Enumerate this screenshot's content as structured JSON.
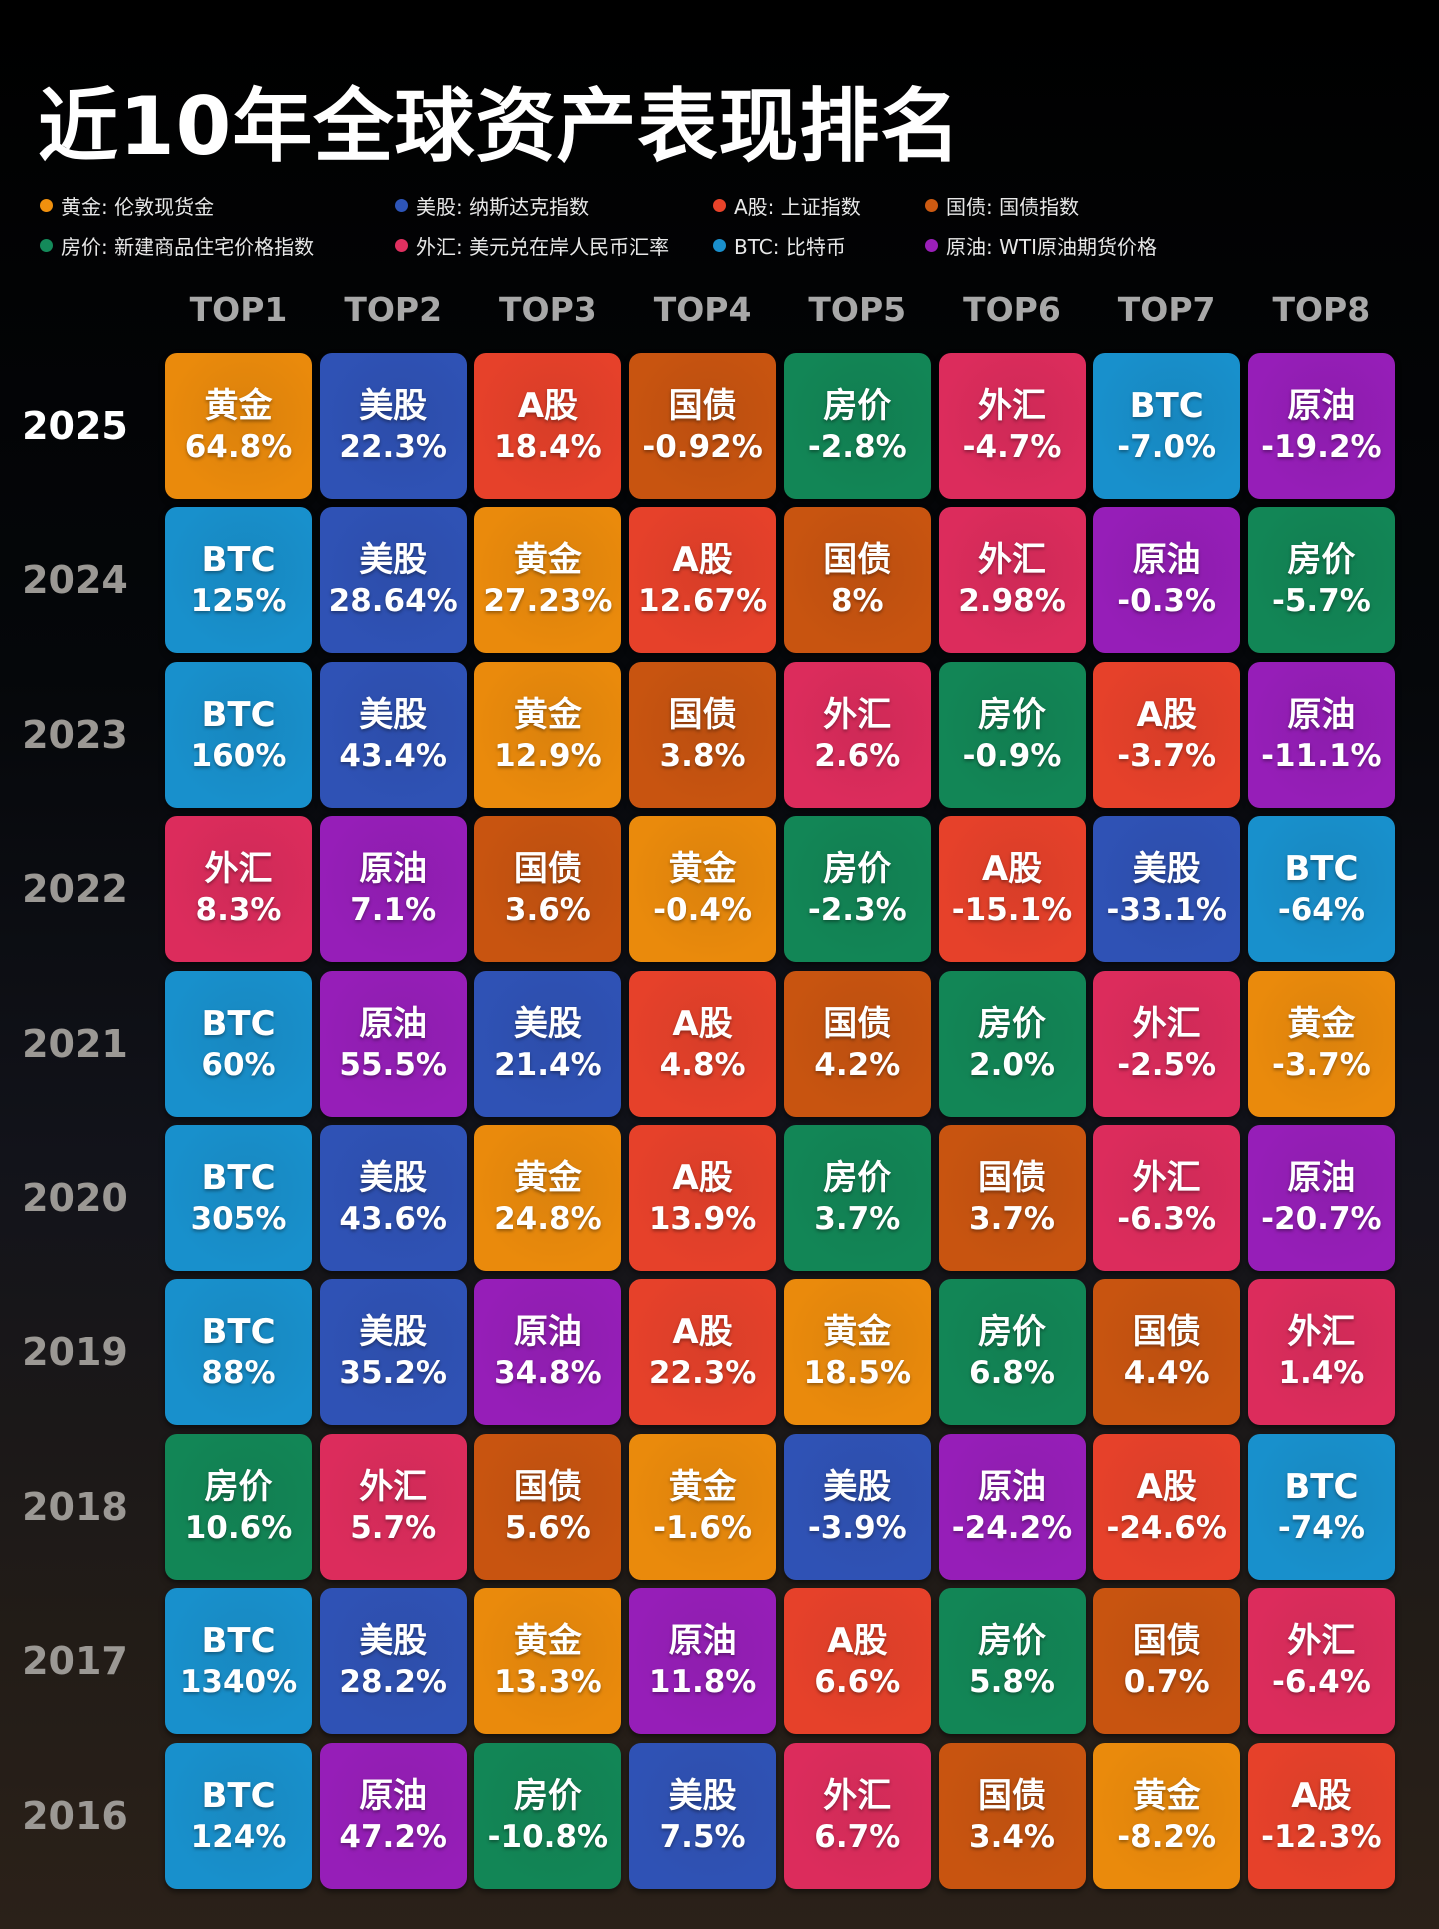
{
  "title": "近10年全球资产表现排名",
  "legend": [
    {
      "asset": "黄金",
      "label": "黄金: 伦敦现货金",
      "color": "#f0900e"
    },
    {
      "asset": "美股",
      "label": "美股: 纳斯达克指数",
      "color": "#2e55b8"
    },
    {
      "asset": "A股",
      "label": "A股: 上证指数",
      "color": "#e8432a"
    },
    {
      "asset": "国债",
      "label": "国债: 国债指数",
      "color": "#cc5a12"
    },
    {
      "asset": "房价",
      "label": "房价: 新建商品住宅价格指数",
      "color": "#148a5a"
    },
    {
      "asset": "外汇",
      "label": "外汇: 美元兑在岸人民币汇率",
      "color": "#e03060"
    },
    {
      "asset": "BTC",
      "label": "BTC: 比特币",
      "color": "#1a8fcc"
    },
    {
      "asset": "原油",
      "label": "原油: WTI原油期货价格",
      "color": "#9a1fb8"
    }
  ],
  "colors": {
    "黄金": "#ea8a0c",
    "美股": "#2f52b5",
    "A股": "#e6412a",
    "国债": "#c85410",
    "房价": "#128656",
    "外汇": "#dc2c5c",
    "BTC": "#1890cc",
    "原油": "#961eb8"
  },
  "columns": [
    "TOP1",
    "TOP2",
    "TOP3",
    "TOP4",
    "TOP5",
    "TOP6",
    "TOP7",
    "TOP8"
  ],
  "rows": [
    {
      "year": "2025",
      "cells": [
        {
          "name": "黄金",
          "value": "64.8%"
        },
        {
          "name": "美股",
          "value": "22.3%"
        },
        {
          "name": "A股",
          "value": "18.4%"
        },
        {
          "name": "国债",
          "value": "-0.92%"
        },
        {
          "name": "房价",
          "value": "-2.8%"
        },
        {
          "name": "外汇",
          "value": "-4.7%"
        },
        {
          "name": "BTC",
          "value": "-7.0%"
        },
        {
          "name": "原油",
          "value": "-19.2%"
        }
      ]
    },
    {
      "year": "2024",
      "cells": [
        {
          "name": "BTC",
          "value": "125%"
        },
        {
          "name": "美股",
          "value": "28.64%"
        },
        {
          "name": "黄金",
          "value": "27.23%"
        },
        {
          "name": "A股",
          "value": "12.67%"
        },
        {
          "name": "国债",
          "value": "8%"
        },
        {
          "name": "外汇",
          "value": "2.98%"
        },
        {
          "name": "原油",
          "value": "-0.3%"
        },
        {
          "name": "房价",
          "value": "-5.7%"
        }
      ]
    },
    {
      "year": "2023",
      "cells": [
        {
          "name": "BTC",
          "value": "160%"
        },
        {
          "name": "美股",
          "value": "43.4%"
        },
        {
          "name": "黄金",
          "value": "12.9%"
        },
        {
          "name": "国债",
          "value": "3.8%"
        },
        {
          "name": "外汇",
          "value": "2.6%"
        },
        {
          "name": "房价",
          "value": "-0.9%"
        },
        {
          "name": "A股",
          "value": "-3.7%"
        },
        {
          "name": "原油",
          "value": "-11.1%"
        }
      ]
    },
    {
      "year": "2022",
      "cells": [
        {
          "name": "外汇",
          "value": "8.3%"
        },
        {
          "name": "原油",
          "value": "7.1%"
        },
        {
          "name": "国债",
          "value": "3.6%"
        },
        {
          "name": "黄金",
          "value": "-0.4%"
        },
        {
          "name": "房价",
          "value": "-2.3%"
        },
        {
          "name": "A股",
          "value": "-15.1%"
        },
        {
          "name": "美股",
          "value": "-33.1%"
        },
        {
          "name": "BTC",
          "value": "-64%"
        }
      ]
    },
    {
      "year": "2021",
      "cells": [
        {
          "name": "BTC",
          "value": "60%"
        },
        {
          "name": "原油",
          "value": "55.5%"
        },
        {
          "name": "美股",
          "value": "21.4%"
        },
        {
          "name": "A股",
          "value": "4.8%"
        },
        {
          "name": "国债",
          "value": "4.2%"
        },
        {
          "name": "房价",
          "value": "2.0%"
        },
        {
          "name": "外汇",
          "value": "-2.5%"
        },
        {
          "name": "黄金",
          "value": "-3.7%"
        }
      ]
    },
    {
      "year": "2020",
      "cells": [
        {
          "name": "BTC",
          "value": "305%"
        },
        {
          "name": "美股",
          "value": "43.6%"
        },
        {
          "name": "黄金",
          "value": "24.8%"
        },
        {
          "name": "A股",
          "value": "13.9%"
        },
        {
          "name": "房价",
          "value": "3.7%"
        },
        {
          "name": "国债",
          "value": "3.7%"
        },
        {
          "name": "外汇",
          "value": "-6.3%"
        },
        {
          "name": "原油",
          "value": "-20.7%"
        }
      ]
    },
    {
      "year": "2019",
      "cells": [
        {
          "name": "BTC",
          "value": "88%"
        },
        {
          "name": "美股",
          "value": "35.2%"
        },
        {
          "name": "原油",
          "value": "34.8%"
        },
        {
          "name": "A股",
          "value": "22.3%"
        },
        {
          "name": "黄金",
          "value": "18.5%"
        },
        {
          "name": "房价",
          "value": "6.8%"
        },
        {
          "name": "国债",
          "value": "4.4%"
        },
        {
          "name": "外汇",
          "value": "1.4%"
        }
      ]
    },
    {
      "year": "2018",
      "cells": [
        {
          "name": "房价",
          "value": "10.6%"
        },
        {
          "name": "外汇",
          "value": "5.7%"
        },
        {
          "name": "国债",
          "value": "5.6%"
        },
        {
          "name": "黄金",
          "value": "-1.6%"
        },
        {
          "name": "美股",
          "value": "-3.9%"
        },
        {
          "name": "原油",
          "value": "-24.2%"
        },
        {
          "name": "A股",
          "value": "-24.6%"
        },
        {
          "name": "BTC",
          "value": "-74%"
        }
      ]
    },
    {
      "year": "2017",
      "cells": [
        {
          "name": "BTC",
          "value": "1340%"
        },
        {
          "name": "美股",
          "value": "28.2%"
        },
        {
          "name": "黄金",
          "value": "13.3%"
        },
        {
          "name": "原油",
          "value": "11.8%"
        },
        {
          "name": "A股",
          "value": "6.6%"
        },
        {
          "name": "房价",
          "value": "5.8%"
        },
        {
          "name": "国债",
          "value": "0.7%"
        },
        {
          "name": "外汇",
          "value": "-6.4%"
        }
      ]
    },
    {
      "year": "2016",
      "cells": [
        {
          "name": "BTC",
          "value": "124%"
        },
        {
          "name": "原油",
          "value": "47.2%"
        },
        {
          "name": "房价",
          "value": "-10.8%"
        },
        {
          "name": "美股",
          "value": "7.5%"
        },
        {
          "name": "外汇",
          "value": "6.7%"
        },
        {
          "name": "国债",
          "value": "3.4%"
        },
        {
          "name": "黄金",
          "value": "-8.2%"
        },
        {
          "name": "A股",
          "value": "-12.3%"
        }
      ]
    }
  ],
  "chart_data": {
    "type": "table",
    "title": "近10年全球资产表现排名",
    "columns": [
      "TOP1",
      "TOP2",
      "TOP3",
      "TOP4",
      "TOP5",
      "TOP6",
      "TOP7",
      "TOP8"
    ],
    "row_labels": [
      "2025",
      "2024",
      "2023",
      "2022",
      "2021",
      "2020",
      "2019",
      "2018",
      "2017",
      "2016"
    ],
    "legend": [
      "黄金: 伦敦现货金",
      "美股: 纳斯达克指数",
      "A股: 上证指数",
      "国债: 国债指数",
      "房价: 新建商品住宅价格指数",
      "外汇: 美元兑在岸人民币汇率",
      "BTC: 比特币",
      "原油: WTI原油期货价格"
    ],
    "series": [
      {
        "name": "2025",
        "assets": [
          "黄金",
          "美股",
          "A股",
          "国债",
          "房价",
          "外汇",
          "BTC",
          "原油"
        ],
        "values": [
          64.8,
          22.3,
          18.4,
          -0.92,
          -2.8,
          -4.7,
          -7.0,
          -19.2
        ]
      },
      {
        "name": "2024",
        "assets": [
          "BTC",
          "美股",
          "黄金",
          "A股",
          "国债",
          "外汇",
          "原油",
          "房价"
        ],
        "values": [
          125,
          28.64,
          27.23,
          12.67,
          8,
          2.98,
          -0.3,
          -5.7
        ]
      },
      {
        "name": "2023",
        "assets": [
          "BTC",
          "美股",
          "黄金",
          "国债",
          "外汇",
          "房价",
          "A股",
          "原油"
        ],
        "values": [
          160,
          43.4,
          12.9,
          3.8,
          2.6,
          -0.9,
          -3.7,
          -11.1
        ]
      },
      {
        "name": "2022",
        "assets": [
          "外汇",
          "原油",
          "国债",
          "黄金",
          "房价",
          "A股",
          "美股",
          "BTC"
        ],
        "values": [
          8.3,
          7.1,
          3.6,
          -0.4,
          -2.3,
          -15.1,
          -33.1,
          -64
        ]
      },
      {
        "name": "2021",
        "assets": [
          "BTC",
          "原油",
          "美股",
          "A股",
          "国债",
          "房价",
          "外汇",
          "黄金"
        ],
        "values": [
          60,
          55.5,
          21.4,
          4.8,
          4.2,
          2.0,
          -2.5,
          -3.7
        ]
      },
      {
        "name": "2020",
        "assets": [
          "BTC",
          "美股",
          "黄金",
          "A股",
          "房价",
          "国债",
          "外汇",
          "原油"
        ],
        "values": [
          305,
          43.6,
          24.8,
          13.9,
          3.7,
          3.7,
          -6.3,
          -20.7
        ]
      },
      {
        "name": "2019",
        "assets": [
          "BTC",
          "美股",
          "原油",
          "A股",
          "黄金",
          "房价",
          "国债",
          "外汇"
        ],
        "values": [
          88,
          35.2,
          34.8,
          22.3,
          18.5,
          6.8,
          4.4,
          1.4
        ]
      },
      {
        "name": "2018",
        "assets": [
          "房价",
          "外汇",
          "国债",
          "黄金",
          "美股",
          "原油",
          "A股",
          "BTC"
        ],
        "values": [
          10.6,
          5.7,
          5.6,
          -1.6,
          -3.9,
          -24.2,
          -24.6,
          -74
        ]
      },
      {
        "name": "2017",
        "assets": [
          "BTC",
          "美股",
          "黄金",
          "原油",
          "A股",
          "房价",
          "国债",
          "外汇"
        ],
        "values": [
          1340,
          28.2,
          13.3,
          11.8,
          6.6,
          5.8,
          0.7,
          -6.4
        ]
      },
      {
        "name": "2016",
        "assets": [
          "BTC",
          "原油",
          "房价",
          "美股",
          "外汇",
          "国债",
          "黄金",
          "A股"
        ],
        "values": [
          124,
          47.2,
          -10.8,
          7.5,
          6.7,
          3.4,
          -8.2,
          -12.3
        ]
      }
    ],
    "unit": "%"
  }
}
